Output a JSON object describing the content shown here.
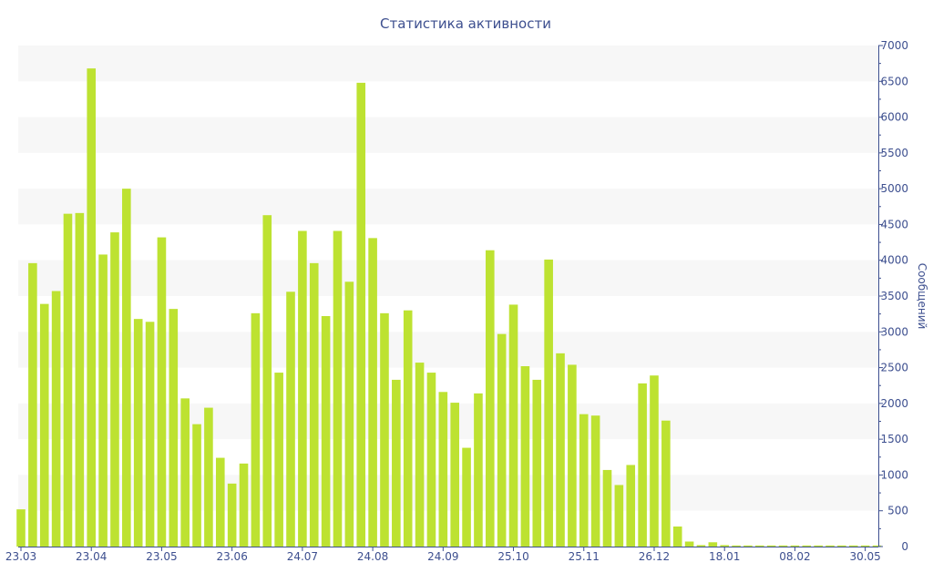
{
  "colors": {
    "bar": "#bde231",
    "text": "#3d4f8f",
    "axis": "#3d4f8f",
    "band": "#f7f7f7"
  },
  "chart_data": {
    "type": "bar",
    "title": "Статистика активности",
    "xlabel": "",
    "ylabel": "Сообщений",
    "ylim": [
      0,
      7000
    ],
    "y_axis_position": "right",
    "grid": "horizontal alternating bands",
    "yticks": [
      "0",
      "500",
      "1000",
      "1500",
      "2000",
      "2500",
      "3000",
      "3500",
      "4000",
      "4500",
      "5000",
      "5500",
      "6000",
      "6500",
      "7000"
    ],
    "xticks": [
      {
        "label": "23.03",
        "week": 0
      },
      {
        "label": "23.04",
        "week": 6
      },
      {
        "label": "23.05",
        "week": 12
      },
      {
        "label": "23.06",
        "week": 18
      },
      {
        "label": "24.07",
        "week": 24
      },
      {
        "label": "24.08",
        "week": 30
      },
      {
        "label": "24.09",
        "week": 36
      },
      {
        "label": "25.10",
        "week": 42
      },
      {
        "label": "25.11",
        "week": 48
      },
      {
        "label": "26.12",
        "week": 54
      },
      {
        "label": "18.01",
        "week": 60
      },
      {
        "label": "08.02",
        "week": 66
      },
      {
        "label": "30.05",
        "week": 72
      }
    ],
    "values": [
      520,
      3960,
      3390,
      3570,
      4650,
      4660,
      6680,
      4080,
      4390,
      5000,
      3180,
      3140,
      4320,
      3320,
      2070,
      1710,
      1940,
      1240,
      880,
      1160,
      3260,
      4630,
      2430,
      3560,
      4410,
      3960,
      3220,
      4410,
      3700,
      6480,
      4310,
      3260,
      2330,
      3300,
      2570,
      2430,
      2160,
      2010,
      1380,
      2140,
      4140,
      2970,
      3380,
      2520,
      2330,
      4010,
      2700,
      2540,
      1850,
      1830,
      1070,
      860,
      1140,
      2280,
      2390,
      1760,
      280,
      70,
      20,
      60,
      20,
      15,
      15,
      15,
      15,
      15,
      15,
      15,
      15,
      15,
      15,
      15,
      15,
      15
    ]
  }
}
